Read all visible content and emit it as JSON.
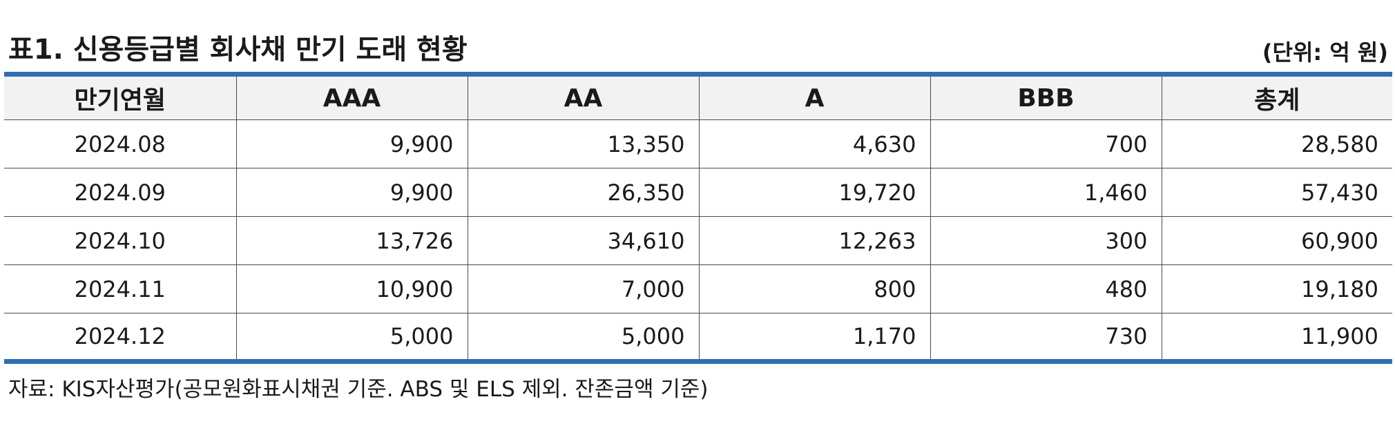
{
  "title": "표1. 신용등급별 회사채 만기 도래 현황",
  "unit": "(단위: 억 원)",
  "table": {
    "headers": [
      "만기연월",
      "AAA",
      "AA",
      "A",
      "BBB",
      "총계"
    ],
    "rows": [
      [
        "2024.08",
        "9,900",
        "13,350",
        "4,630",
        "700",
        "28,580"
      ],
      [
        "2024.09",
        "9,900",
        "26,350",
        "19,720",
        "1,460",
        "57,430"
      ],
      [
        "2024.10",
        "13,726",
        "34,610",
        "12,263",
        "300",
        "60,900"
      ],
      [
        "2024.11",
        "10,900",
        "7,000",
        "800",
        "480",
        "19,180"
      ],
      [
        "2024.12",
        "5,000",
        "5,000",
        "1,170",
        "730",
        "11,900"
      ]
    ]
  },
  "footnote": "자료: KIS자산평가(공모원화표시채권 기준. ABS 및 ELS 제외. 잔존금액 기준)",
  "colors": {
    "rule": "#2e6eb5",
    "header_bg": "#f2f2f2"
  }
}
